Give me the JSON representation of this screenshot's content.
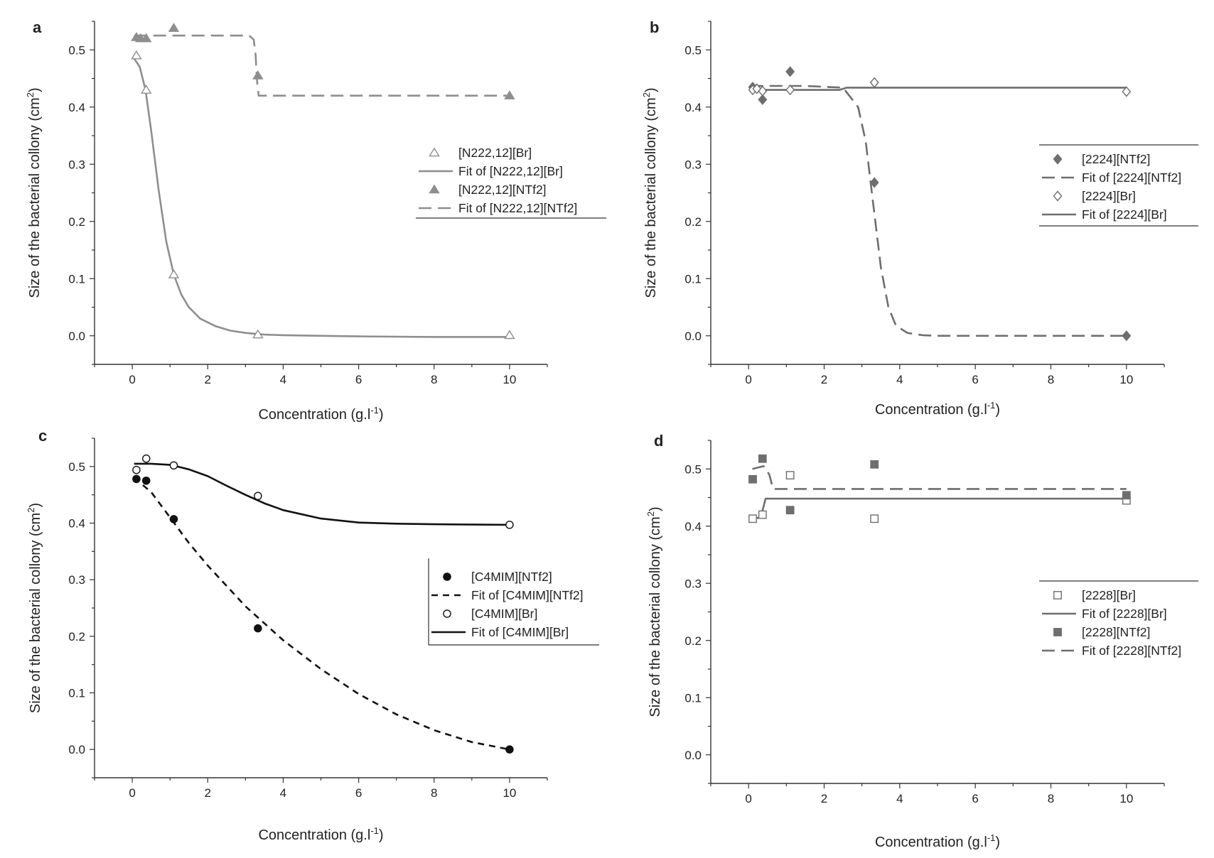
{
  "figure": {
    "axis_color": "#333333",
    "gray_color": "#6e6e6e",
    "light_gray_color": "#8e8e8e",
    "black_color": "#111111"
  },
  "chart_data": [
    {
      "id": "a",
      "panel_label": "a",
      "type": "scatter",
      "xlabel_main": "Concentration (g.l",
      "xlabel_sup": "-1",
      "xlabel_end": ")",
      "ylabel_main": "Size of the bacterial collony (cm",
      "ylabel_sup": "2",
      "ylabel_end": ")",
      "xlim": [
        -1,
        11
      ],
      "ylim": [
        -0.05,
        0.55
      ],
      "xticks": [
        0,
        2,
        4,
        6,
        8,
        10
      ],
      "yticks": [
        0.0,
        0.1,
        0.2,
        0.3,
        0.4,
        0.5
      ],
      "series": [
        {
          "name": "[N222,12][Br]",
          "kind": "points",
          "marker": "triangle-open",
          "color": "#8e8e8e",
          "x": [
            0.11,
            0.37,
            1.1,
            3.33,
            10
          ],
          "y": [
            0.49,
            0.43,
            0.107,
            0.002,
            0.001
          ]
        },
        {
          "name": "Fit of [N222,12][Br]",
          "kind": "line",
          "dash": "solid",
          "color": "#8e8e8e",
          "x": [
            0.05,
            0.2,
            0.35,
            0.5,
            0.7,
            0.9,
            1.1,
            1.3,
            1.5,
            1.8,
            2.2,
            2.6,
            3.0,
            3.5,
            4.0,
            5.0,
            6.0,
            8.0,
            10.0
          ],
          "y": [
            0.485,
            0.47,
            0.43,
            0.36,
            0.255,
            0.165,
            0.107,
            0.072,
            0.05,
            0.03,
            0.017,
            0.009,
            0.005,
            0.002,
            0.001,
            0.0,
            -0.001,
            -0.002,
            -0.002
          ]
        },
        {
          "name": "[N222,12][NTf2]",
          "kind": "points",
          "marker": "triangle-filled",
          "color": "#8e8e8e",
          "x": [
            0.11,
            0.22,
            0.37,
            1.1,
            3.33,
            10
          ],
          "y": [
            0.522,
            0.52,
            0.52,
            0.538,
            0.455,
            0.42
          ]
        },
        {
          "name": "Fit of [N222,12][NTf2]",
          "kind": "line",
          "dash": "long",
          "color": "#8e8e8e",
          "x": [
            0.05,
            1.5,
            3.1,
            3.22,
            3.27,
            3.3,
            3.35,
            10
          ],
          "y": [
            0.525,
            0.525,
            0.525,
            0.518,
            0.49,
            0.45,
            0.42,
            0.42
          ]
        }
      ],
      "legend": {
        "position": "right-middle"
      }
    },
    {
      "id": "b",
      "panel_label": "b",
      "type": "scatter",
      "xlabel_main": "Concentration (g.l",
      "xlabel_sup": "-1",
      "xlabel_end": ")",
      "ylabel_main": "Size of the bacterial collony (cm",
      "ylabel_sup": "2",
      "ylabel_end": ")",
      "xlim": [
        -1,
        11
      ],
      "ylim": [
        -0.05,
        0.55
      ],
      "xticks": [
        0,
        2,
        4,
        6,
        8,
        10
      ],
      "yticks": [
        0.0,
        0.1,
        0.2,
        0.3,
        0.4,
        0.5
      ],
      "series": [
        {
          "name": "[2224][NTf2]",
          "kind": "points",
          "marker": "diamond-filled",
          "color": "#6e6e6e",
          "x": [
            0.11,
            0.37,
            1.1,
            3.33,
            10
          ],
          "y": [
            0.435,
            0.413,
            0.462,
            0.268,
            0.0
          ]
        },
        {
          "name": "Fit of [2224][NTf2]",
          "kind": "line",
          "dash": "long",
          "color": "#6e6e6e",
          "x": [
            0.05,
            1.5,
            2.5,
            2.9,
            3.1,
            3.3,
            3.5,
            3.7,
            3.9,
            4.2,
            4.6,
            5.0,
            10.0
          ],
          "y": [
            0.437,
            0.437,
            0.434,
            0.4,
            0.34,
            0.23,
            0.12,
            0.05,
            0.018,
            0.005,
            0.001,
            0.0,
            0.0
          ]
        },
        {
          "name": "[2224][Br]",
          "kind": "points",
          "marker": "diamond-open",
          "color": "#6e6e6e",
          "x": [
            0.11,
            0.22,
            0.37,
            1.1,
            3.33,
            10
          ],
          "y": [
            0.43,
            0.432,
            0.428,
            0.43,
            0.443,
            0.427
          ]
        },
        {
          "name": "Fit of [2224][Br]",
          "kind": "line",
          "dash": "solid",
          "color": "#6e6e6e",
          "x": [
            0.05,
            2.4,
            2.6,
            10.0
          ],
          "y": [
            0.43,
            0.43,
            0.434,
            0.434
          ]
        }
      ],
      "legend": {
        "position": "right-middle"
      }
    },
    {
      "id": "c",
      "panel_label": "c",
      "type": "scatter",
      "xlabel_main": "Concentration (g.l",
      "xlabel_sup": "-1",
      "xlabel_end": ")",
      "ylabel_main": "Size of the bacterial collony (cm",
      "ylabel_sup": "2",
      "ylabel_end": ")",
      "xlim": [
        -1,
        11
      ],
      "ylim": [
        -0.05,
        0.55
      ],
      "xticks": [
        0,
        2,
        4,
        6,
        8,
        10
      ],
      "yticks": [
        0.0,
        0.1,
        0.2,
        0.3,
        0.4,
        0.5
      ],
      "series": [
        {
          "name": "[C4MIM][NTf2]",
          "kind": "points",
          "marker": "circle-filled",
          "color": "#111111",
          "x": [
            0.11,
            0.37,
            1.1,
            3.33,
            10
          ],
          "y": [
            0.478,
            0.475,
            0.407,
            0.214,
            0.0
          ]
        },
        {
          "name": "Fit of [C4MIM][NTf2]",
          "kind": "line",
          "dash": "medium",
          "color": "#111111",
          "x": [
            0.05,
            0.5,
            1.0,
            1.5,
            2.0,
            3.0,
            4.0,
            5.0,
            6.0,
            7.0,
            8.0,
            9.0,
            10.0
          ],
          "y": [
            0.48,
            0.455,
            0.41,
            0.365,
            0.325,
            0.253,
            0.193,
            0.142,
            0.098,
            0.062,
            0.034,
            0.013,
            0.0
          ]
        },
        {
          "name": "[C4MIM][Br]",
          "kind": "points",
          "marker": "circle-open",
          "color": "#111111",
          "x": [
            0.11,
            0.37,
            1.1,
            3.33,
            10
          ],
          "y": [
            0.494,
            0.514,
            0.502,
            0.448,
            0.397
          ]
        },
        {
          "name": "Fit of [C4MIM][Br]",
          "kind": "line",
          "dash": "solid",
          "color": "#111111",
          "x": [
            0.05,
            0.5,
            1.0,
            1.5,
            2.0,
            2.5,
            3.0,
            3.5,
            4.0,
            5.0,
            6.0,
            7.0,
            8.0,
            10.0
          ],
          "y": [
            0.505,
            0.505,
            0.503,
            0.495,
            0.483,
            0.466,
            0.45,
            0.435,
            0.423,
            0.408,
            0.401,
            0.399,
            0.398,
            0.397
          ]
        }
      ],
      "legend": {
        "position": "right-middle"
      }
    },
    {
      "id": "d",
      "panel_label": "d",
      "type": "scatter",
      "xlabel_main": "Concentration (g.l",
      "xlabel_sup": "-1",
      "xlabel_end": ")",
      "ylabel_main": "Size of the bacterial collony (cm",
      "ylabel_sup": "2",
      "ylabel_end": ")",
      "xlim": [
        -1,
        11
      ],
      "ylim": [
        -0.05,
        0.55
      ],
      "xticks": [
        0,
        2,
        4,
        6,
        8,
        10
      ],
      "yticks": [
        0.0,
        0.1,
        0.2,
        0.3,
        0.4,
        0.5
      ],
      "series": [
        {
          "name": "[2228][Br]",
          "kind": "points",
          "marker": "square-open",
          "color": "#6e6e6e",
          "x": [
            0.11,
            0.37,
            1.1,
            3.33,
            10
          ],
          "y": [
            0.413,
            0.42,
            0.489,
            0.413,
            0.445
          ]
        },
        {
          "name": "Fit of [2228][Br]",
          "kind": "line",
          "dash": "solid",
          "color": "#6e6e6e",
          "x": [
            0.1,
            0.3,
            0.38,
            0.45,
            10.0
          ],
          "y": [
            0.413,
            0.415,
            0.43,
            0.448,
            0.448
          ]
        },
        {
          "name": "[2228][NTf2]",
          "kind": "points",
          "marker": "square-filled",
          "color": "#6e6e6e",
          "x": [
            0.11,
            0.37,
            1.1,
            3.33,
            10
          ],
          "y": [
            0.482,
            0.518,
            0.428,
            0.508,
            0.454
          ]
        },
        {
          "name": "Fit of [2228][NTf2]",
          "kind": "line",
          "dash": "long",
          "color": "#6e6e6e",
          "x": [
            0.1,
            0.4,
            0.55,
            0.65,
            10.0
          ],
          "y": [
            0.5,
            0.505,
            0.49,
            0.465,
            0.465
          ]
        }
      ],
      "legend": {
        "position": "right-middle"
      }
    }
  ]
}
